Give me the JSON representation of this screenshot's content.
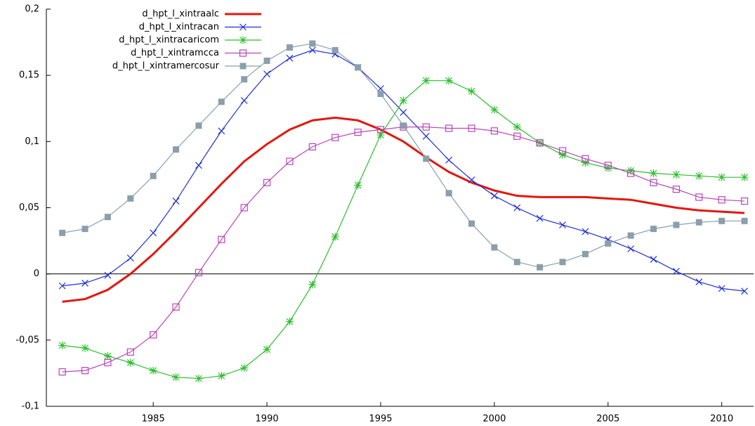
{
  "chart_data": {
    "type": "line",
    "x": [
      1981,
      1982,
      1983,
      1984,
      1985,
      1986,
      1987,
      1988,
      1989,
      1990,
      1991,
      1992,
      1993,
      1994,
      1995,
      1996,
      1997,
      1998,
      1999,
      2000,
      2001,
      2002,
      2003,
      2004,
      2005,
      2006,
      2007,
      2008,
      2009,
      2010,
      2011
    ],
    "xlim": [
      1980.3,
      2011.4
    ],
    "xticks": [
      1985,
      1990,
      1995,
      2000,
      2005,
      2010
    ],
    "ylim": [
      -0.1,
      0.2
    ],
    "yticks": [
      {
        "value": -0.1,
        "label": "-0,1"
      },
      {
        "value": -0.05,
        "label": "-0,05"
      },
      0,
      {
        "value": 0.05,
        "label": "0,05"
      },
      {
        "value": 0.1,
        "label": "0,1"
      },
      {
        "value": 0.15,
        "label": "0,15"
      },
      {
        "value": 0.2,
        "label": "0,2"
      }
    ],
    "zero_line": true,
    "legend": "top-left",
    "series": [
      {
        "name": "d_hpt_l_xintraalc",
        "color": "#e3170f",
        "marker": "none",
        "width": 3,
        "values": [
          -0.021,
          -0.019,
          -0.012,
          0.0,
          0.015,
          0.032,
          0.05,
          0.068,
          0.085,
          0.098,
          0.109,
          0.116,
          0.118,
          0.116,
          0.109,
          0.1,
          0.088,
          0.077,
          0.069,
          0.063,
          0.059,
          0.058,
          0.058,
          0.058,
          0.057,
          0.056,
          0.053,
          0.05,
          0.048,
          0.047,
          0.046
        ]
      },
      {
        "name": "d_hpt_l_xintracan",
        "color": "#1f2fd6",
        "marker": "x",
        "width": 1.2,
        "values": [
          -0.009,
          -0.007,
          -0.001,
          0.012,
          0.031,
          0.055,
          0.082,
          0.108,
          0.131,
          0.151,
          0.163,
          0.169,
          0.166,
          0.156,
          0.14,
          0.122,
          0.104,
          0.086,
          0.071,
          0.059,
          0.05,
          0.042,
          0.037,
          0.032,
          0.026,
          0.019,
          0.011,
          0.002,
          -0.006,
          -0.011,
          -0.013
        ]
      },
      {
        "name": "d_hpt_l_xintracaricom",
        "color": "#2bbf2b",
        "marker": "star",
        "width": 1.2,
        "values": [
          -0.054,
          -0.056,
          -0.062,
          -0.067,
          -0.073,
          -0.078,
          -0.079,
          -0.077,
          -0.071,
          -0.057,
          -0.036,
          -0.008,
          0.028,
          0.067,
          0.105,
          0.131,
          0.146,
          0.146,
          0.138,
          0.124,
          0.111,
          0.099,
          0.09,
          0.084,
          0.08,
          0.078,
          0.076,
          0.075,
          0.074,
          0.073,
          0.073
        ]
      },
      {
        "name": "d_hpt_l_xintramcca",
        "color": "#b845b8",
        "marker": "square-open",
        "width": 1.2,
        "values": [
          -0.074,
          -0.073,
          -0.067,
          -0.059,
          -0.046,
          -0.025,
          0.001,
          0.026,
          0.05,
          0.069,
          0.085,
          0.096,
          0.103,
          0.107,
          0.109,
          0.111,
          0.111,
          0.11,
          0.11,
          0.108,
          0.104,
          0.099,
          0.093,
          0.087,
          0.082,
          0.076,
          0.069,
          0.064,
          0.058,
          0.056,
          0.055
        ]
      },
      {
        "name": "d_hpt_l_xintramercosur",
        "color": "#8a9fab",
        "marker": "square",
        "width": 1.2,
        "values": [
          0.031,
          0.034,
          0.043,
          0.057,
          0.074,
          0.094,
          0.112,
          0.13,
          0.147,
          0.161,
          0.171,
          0.174,
          0.169,
          0.156,
          0.136,
          0.112,
          0.087,
          0.061,
          0.038,
          0.02,
          0.009,
          0.005,
          0.009,
          0.015,
          0.023,
          0.029,
          0.034,
          0.037,
          0.039,
          0.04,
          0.04
        ]
      }
    ]
  }
}
